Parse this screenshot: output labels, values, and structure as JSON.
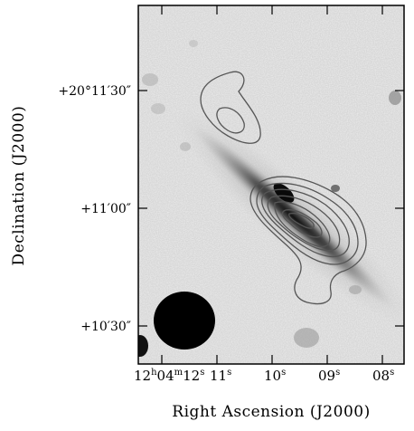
{
  "figure": {
    "x_axis": {
      "label": "Right Ascension (J2000)",
      "ticks": [
        {
          "base": "12",
          "sup_h": "h",
          "mid": "04",
          "sup_m": "m",
          "main": "12",
          "sup_s": "s"
        },
        {
          "main": "11",
          "sup_s": "s"
        },
        {
          "main": "10",
          "sup_s": "s"
        },
        {
          "main": "09",
          "sup_s": "s"
        },
        {
          "main": "08",
          "sup_s": "s"
        }
      ]
    },
    "y_axis": {
      "label": "Declination (J2000)",
      "ticks": [
        "+20°11′30″",
        "+11′00″",
        "+10′30″"
      ]
    },
    "colors": {
      "frame": "#000000",
      "contour": "#555555",
      "beam": "#000000",
      "sky_background": "#dcdcdc"
    }
  }
}
